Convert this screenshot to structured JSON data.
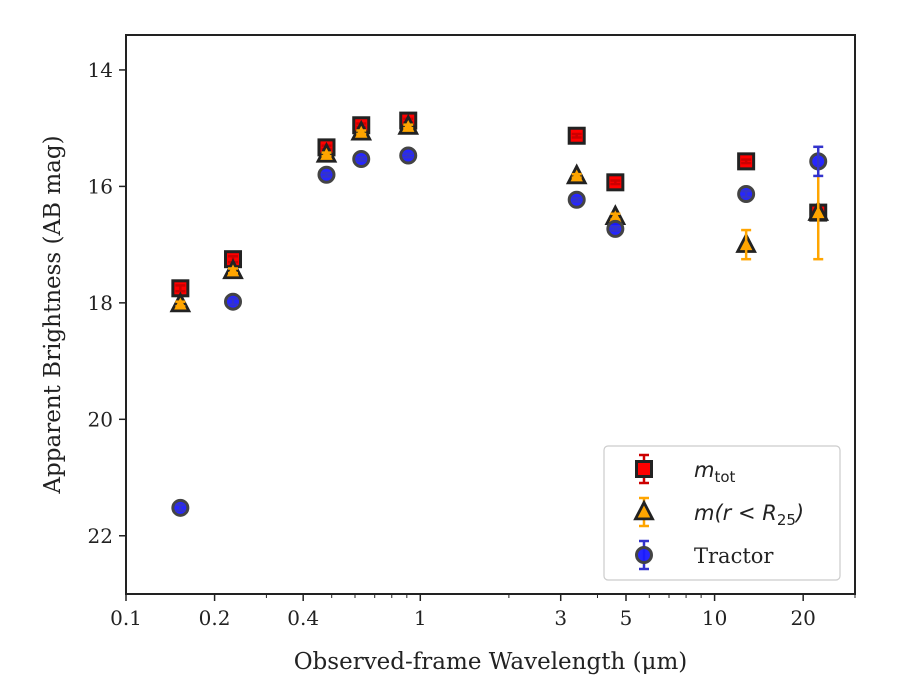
{
  "chart_data": {
    "type": "scatter",
    "xlabel": "Observed-frame Wavelength (μm)",
    "ylabel": "Apparent Brightness (AB mag)",
    "xscale": "log",
    "xlim": [
      0.1,
      30
    ],
    "ylim": [
      23,
      13.4
    ],
    "y_inverted": true,
    "x_ticks": [
      0.1,
      0.2,
      0.4,
      1,
      3,
      5,
      10,
      20
    ],
    "x_tick_labels": [
      "0.1",
      "0.2",
      "0.4",
      "1",
      "3",
      "5",
      "10",
      "20"
    ],
    "y_ticks": [
      14,
      16,
      18,
      20,
      22
    ],
    "y_tick_labels": [
      "14",
      "16",
      "18",
      "20",
      "22"
    ],
    "grid": false,
    "legend_position": "lower-right",
    "series": [
      {
        "name": "m_tot",
        "legend_main": "m",
        "legend_sub": "tot",
        "marker": "square",
        "color": "#ff0000",
        "edge_color": "#222222",
        "errbar_color": "#cc0000",
        "x": [
          0.153,
          0.231,
          0.48,
          0.63,
          0.91,
          3.4,
          4.6,
          12.8,
          22.5
        ],
        "y": [
          17.75,
          17.25,
          15.33,
          14.95,
          14.87,
          15.13,
          15.93,
          15.57,
          16.45
        ],
        "yerr": [
          0.05,
          0.05,
          0.03,
          0.03,
          0.03,
          0.03,
          0.03,
          0.03,
          0.03
        ]
      },
      {
        "name": "m(r < R_25)",
        "legend_main": "m(r < R",
        "legend_sub": "25",
        "legend_tail": ")",
        "marker": "triangle",
        "color": "#ffa500",
        "edge_color": "#222222",
        "errbar_color": "#ffa500",
        "x": [
          0.153,
          0.231,
          0.48,
          0.63,
          0.91,
          3.4,
          4.6,
          12.8,
          22.5
        ],
        "y": [
          18.02,
          17.45,
          15.45,
          15.07,
          14.97,
          15.82,
          16.52,
          17.0,
          16.45
        ],
        "yerr": [
          0.04,
          0.04,
          0.03,
          0.03,
          0.03,
          0.03,
          0.05,
          0.25,
          0.8
        ]
      },
      {
        "name": "Tractor",
        "legend_main": "Tractor",
        "marker": "circle",
        "color": "#1a1aff",
        "edge_color": "#444444",
        "errbar_color": "#3333cc",
        "x": [
          0.153,
          0.231,
          0.48,
          0.63,
          0.91,
          3.4,
          4.6,
          12.8,
          22.5
        ],
        "y": [
          21.52,
          17.98,
          15.8,
          15.53,
          15.47,
          16.23,
          16.73,
          16.13,
          15.57
        ],
        "yerr": [
          0.05,
          0.05,
          0.03,
          0.03,
          0.03,
          0.03,
          0.03,
          0.05,
          0.25
        ]
      }
    ]
  }
}
